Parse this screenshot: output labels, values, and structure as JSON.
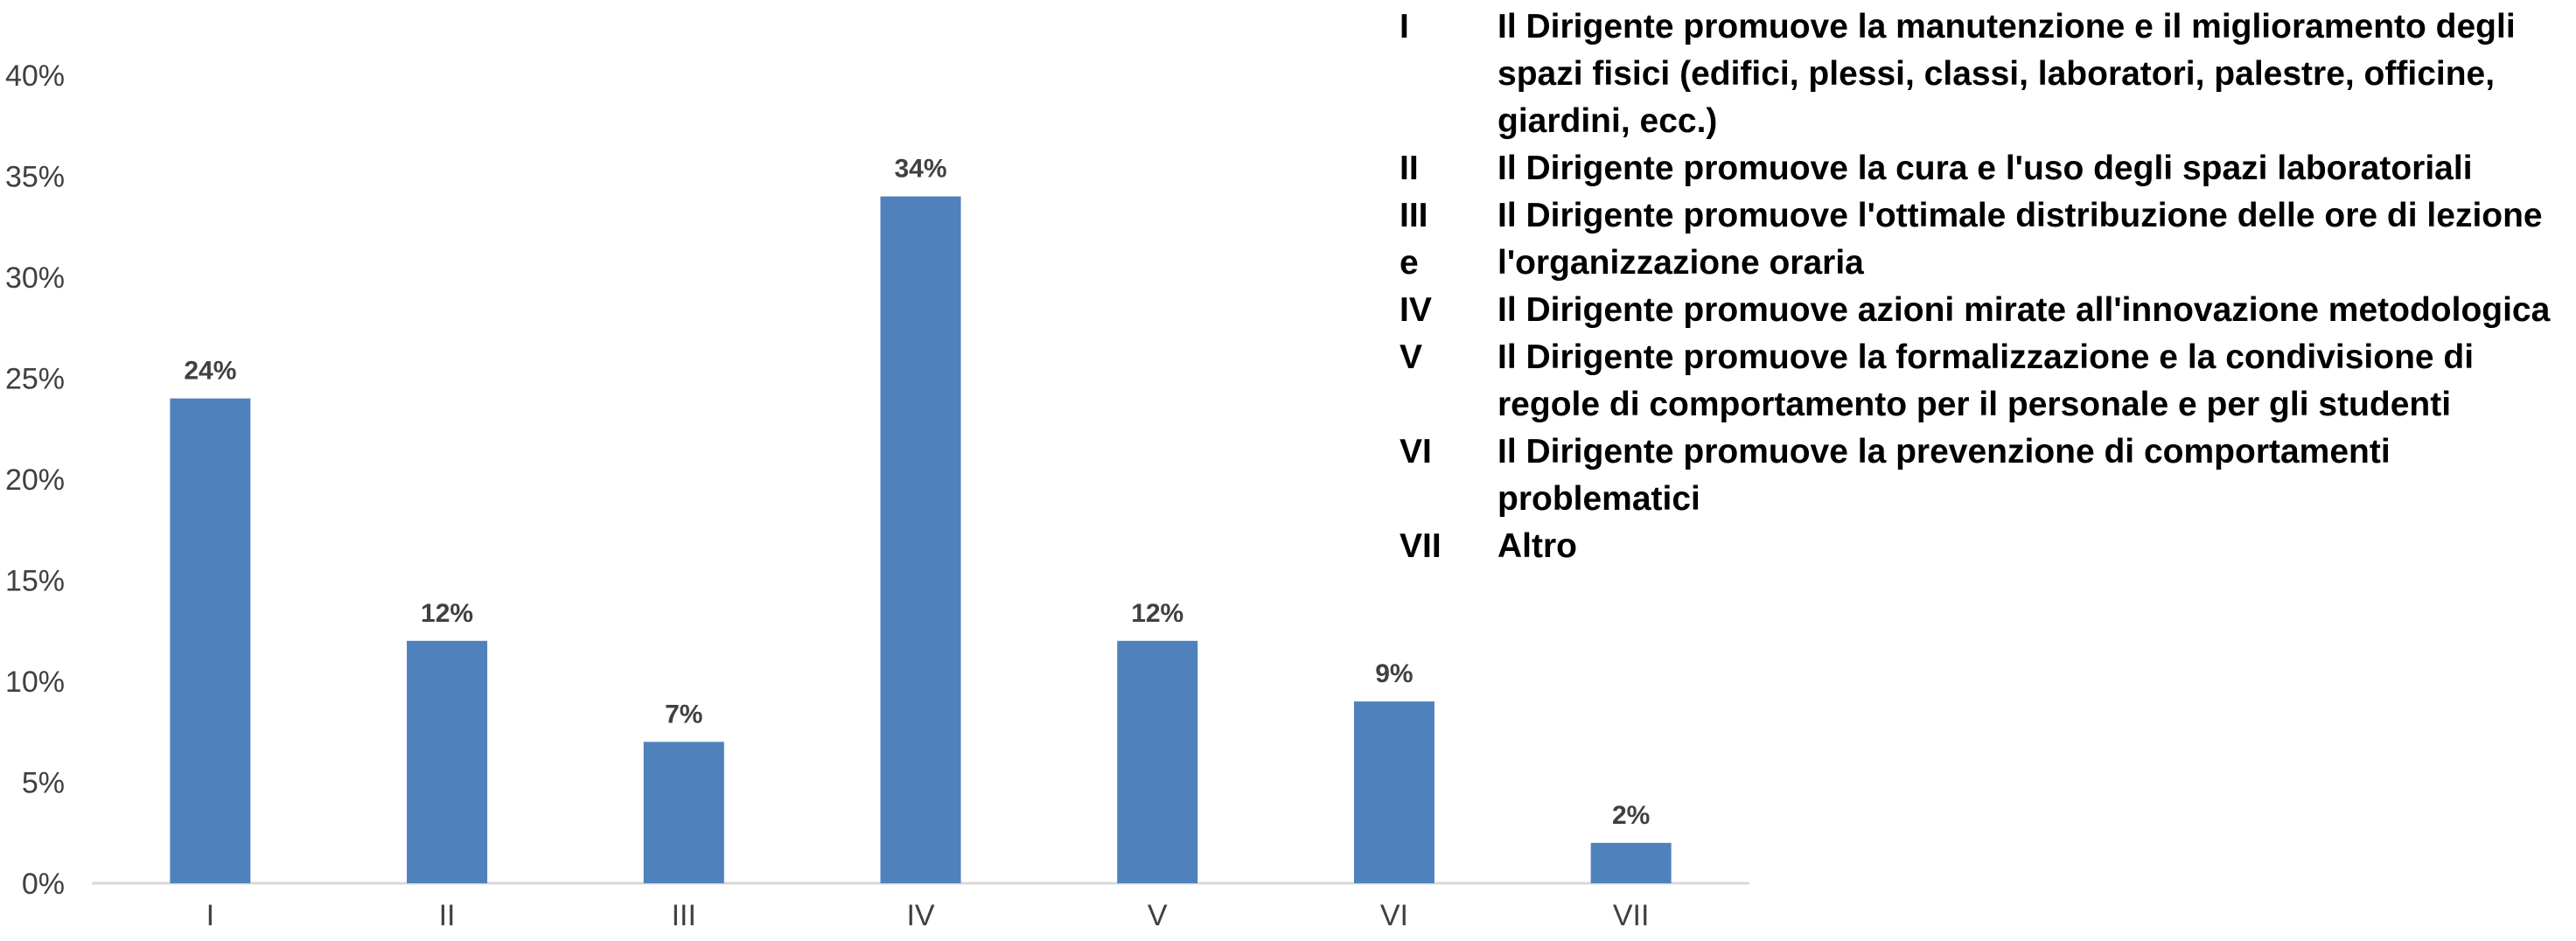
{
  "chart_data": {
    "type": "bar",
    "categories": [
      "I",
      "II",
      "III",
      "IV",
      "V",
      "VI",
      "VII"
    ],
    "values": [
      24,
      12,
      7,
      34,
      12,
      9,
      2
    ],
    "data_labels": [
      "24%",
      "12%",
      "7%",
      "34%",
      "12%",
      "9%",
      "2%"
    ],
    "ylim": [
      0,
      40
    ],
    "yticks": [
      0,
      5,
      10,
      15,
      20,
      25,
      30,
      35,
      40
    ],
    "ytick_labels": [
      "0%",
      "5%",
      "10%",
      "15%",
      "20%",
      "25%",
      "30%",
      "35%",
      "40%"
    ],
    "grid": false,
    "legend_position": "top-right",
    "bar_color": "#4F81BD",
    "axis_color": "#D9D9D9",
    "text_color": "#404040"
  },
  "legend": {
    "items": [
      {
        "key": "I",
        "text": "Il Dirigente promuove la manutenzione e il miglioramento degli spazi fisici  (edifici, plessi, classi, laboratori, palestre, officine, giardini, ecc.)"
      },
      {
        "key": "II",
        "text": "Il Dirigente promuove la cura e l'uso degli spazi laboratoriali"
      },
      {
        "key": "III",
        "key_line2": "e",
        "text": "Il Dirigente promuove l'ottimale distribuzione delle ore di lezione l'organizzazione oraria"
      },
      {
        "key": "IV",
        "text": "Il Dirigente promuove azioni mirate all'innovazione metodologica"
      },
      {
        "key": "V",
        "text": "Il Dirigente promuove la formalizzazione e la condivisione di regole di comportamento per il personale e per gli studenti"
      },
      {
        "key": "VI",
        "text": "Il Dirigente promuove la prevenzione di comportamenti problematici"
      },
      {
        "key": "VII",
        "text": "Altro"
      }
    ]
  }
}
